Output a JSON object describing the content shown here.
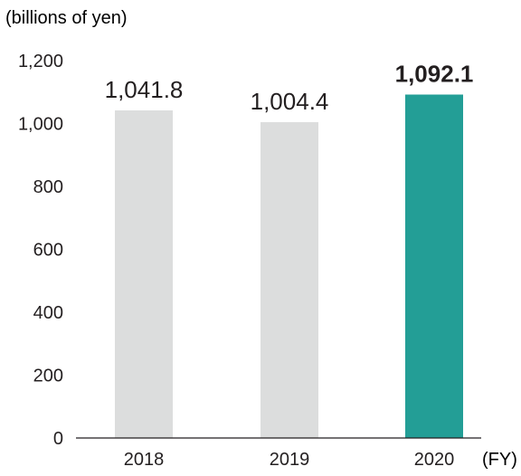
{
  "chart_data": {
    "type": "bar",
    "unit_label": "(billions of yen)",
    "x_unit_label": "(FY)",
    "categories": [
      "2018",
      "2019",
      "2020"
    ],
    "values": [
      1041.8,
      1004.4,
      1092.1
    ],
    "value_labels": [
      "1,041.8",
      "1,004.4",
      "1,092.1"
    ],
    "highlight_index": 2,
    "ylim": [
      0,
      1200
    ],
    "yticks": [
      0,
      200,
      400,
      600,
      800,
      1000,
      1200
    ],
    "ytick_labels": [
      "0",
      "200",
      "400",
      "600",
      "800",
      "1,000",
      "1,200"
    ],
    "grid": false,
    "colors": {
      "bar": "#dcdddd",
      "highlight": "#239e96",
      "axis": "#231f20",
      "text": "#231f20"
    }
  }
}
